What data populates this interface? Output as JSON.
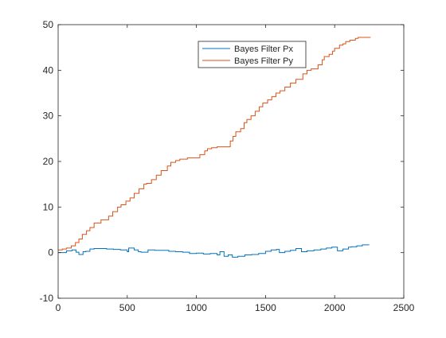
{
  "chart_data": {
    "type": "line",
    "title": "",
    "xlabel": "",
    "ylabel": "",
    "xlim": [
      0,
      2500
    ],
    "ylim": [
      -10,
      50
    ],
    "xticks": [
      0,
      500,
      1000,
      1500,
      2000,
      2500
    ],
    "yticks": [
      -10,
      0,
      10,
      20,
      30,
      40,
      50
    ],
    "xtick_labels": [
      "0",
      "500",
      "1000",
      "1500",
      "2000",
      "2500"
    ],
    "ytick_labels": [
      "-10",
      "0",
      "10",
      "20",
      "30",
      "40",
      "50"
    ],
    "grid": false,
    "legend_position": "top-center",
    "series": [
      {
        "name": "Bayes Filter Px",
        "color": "#0072BD",
        "x": [
          0,
          60,
          100,
          130,
          150,
          180,
          200,
          230,
          260,
          300,
          350,
          400,
          450,
          500,
          510,
          550,
          580,
          600,
          650,
          700,
          750,
          800,
          850,
          900,
          950,
          1000,
          1050,
          1100,
          1150,
          1170,
          1200,
          1230,
          1260,
          1300,
          1350,
          1400,
          1450,
          1500,
          1540,
          1580,
          1600,
          1640,
          1680,
          1720,
          1760,
          1800,
          1850,
          1900,
          1940,
          1980,
          2020,
          2060,
          2100,
          2120,
          2160,
          2200,
          2250
        ],
        "y": [
          0.0,
          0.4,
          0.6,
          0.1,
          -0.4,
          0.2,
          0.3,
          0.8,
          0.9,
          0.9,
          0.8,
          0.7,
          0.6,
          0.2,
          1.0,
          0.6,
          0.2,
          0.1,
          0.6,
          0.5,
          0.5,
          0.3,
          0.2,
          0.1,
          -0.2,
          -0.1,
          -0.3,
          -0.2,
          -0.5,
          0.2,
          -0.8,
          -0.5,
          -1.0,
          -0.8,
          -0.5,
          -0.4,
          -0.2,
          0.3,
          0.6,
          0.7,
          0.0,
          0.3,
          0.5,
          0.9,
          0.2,
          0.4,
          0.6,
          0.8,
          1.0,
          1.2,
          0.4,
          0.8,
          1.2,
          1.3,
          1.5,
          1.7,
          1.7
        ]
      },
      {
        "name": "Bayes Filter Py",
        "color": "#D95319",
        "x": [
          0,
          30,
          60,
          95,
          125,
          150,
          175,
          205,
          230,
          260,
          310,
          365,
          395,
          430,
          455,
          490,
          520,
          550,
          585,
          620,
          640,
          675,
          710,
          745,
          790,
          815,
          850,
          880,
          935,
          1025,
          1060,
          1080,
          1110,
          1150,
          1245,
          1265,
          1285,
          1320,
          1345,
          1365,
          1395,
          1425,
          1455,
          1480,
          1515,
          1545,
          1575,
          1605,
          1640,
          1680,
          1720,
          1770,
          1800,
          1830,
          1880,
          1910,
          1925,
          1960,
          1985,
          2000,
          2035,
          2060,
          2080,
          2110,
          2150,
          2170,
          2200,
          2220,
          2240,
          2260
        ],
        "y": [
          0.6,
          0.8,
          1.0,
          1.5,
          2.2,
          3.0,
          4.0,
          4.8,
          5.5,
          6.5,
          7.2,
          8.0,
          9.0,
          10.0,
          10.5,
          11.3,
          12.0,
          13.0,
          14.0,
          15.0,
          15.2,
          16.0,
          17.0,
          18.0,
          19.0,
          19.8,
          20.2,
          20.5,
          20.8,
          21.5,
          22.3,
          22.8,
          23.0,
          23.2,
          24.5,
          25.5,
          26.5,
          27.2,
          28.5,
          29.2,
          30.0,
          31.0,
          32.0,
          32.8,
          33.5,
          34.2,
          35.0,
          35.5,
          36.3,
          37.2,
          38.0,
          39.2,
          40.0,
          40.3,
          41.2,
          42.3,
          43.0,
          43.5,
          44.2,
          44.8,
          45.5,
          45.8,
          46.3,
          46.6,
          47.0,
          47.2,
          47.2,
          47.2,
          47.2,
          47.2
        ]
      }
    ]
  }
}
